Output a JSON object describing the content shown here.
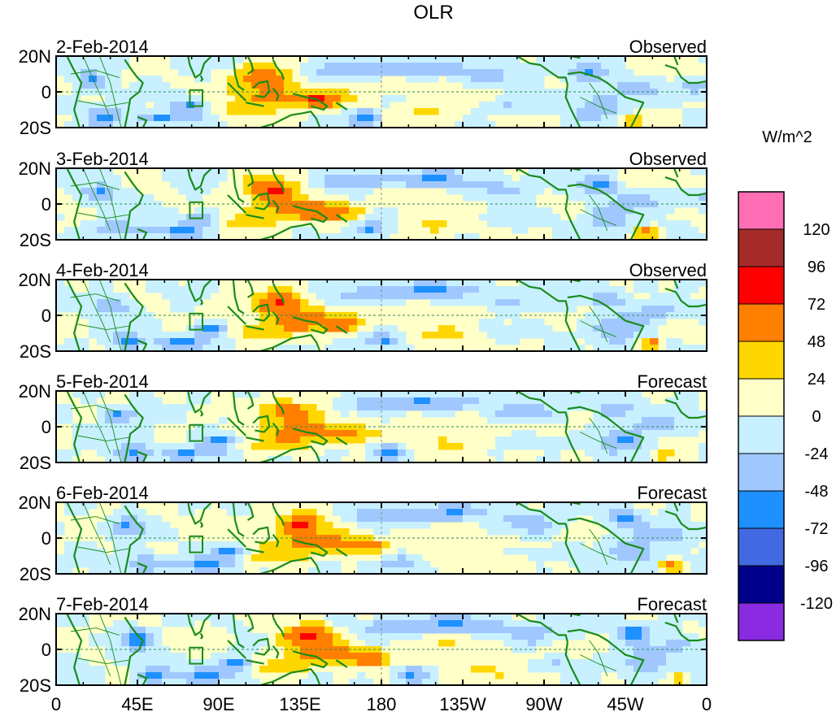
{
  "chart_data": {
    "type": "heatmap",
    "title": "OLR",
    "units_label": "W/m^2",
    "panels": [
      {
        "date": "2-Feb-2014",
        "status": "Observed"
      },
      {
        "date": "3-Feb-2014",
        "status": "Observed"
      },
      {
        "date": "4-Feb-2014",
        "status": "Observed"
      },
      {
        "date": "5-Feb-2014",
        "status": "Forecast"
      },
      {
        "date": "6-Feb-2014",
        "status": "Forecast"
      },
      {
        "date": "7-Feb-2014",
        "status": "Forecast"
      }
    ],
    "longitude_range": [
      0,
      360
    ],
    "latitude_range": [
      -20,
      20
    ],
    "x_ticks": [
      {
        "lon": 0,
        "label": "0"
      },
      {
        "lon": 45,
        "label": "45E"
      },
      {
        "lon": 90,
        "label": "90E"
      },
      {
        "lon": 135,
        "label": "135E"
      },
      {
        "lon": 180,
        "label": "180"
      },
      {
        "lon": 225,
        "label": "135W"
      },
      {
        "lon": 270,
        "label": "90W"
      },
      {
        "lon": 315,
        "label": "45W"
      },
      {
        "lon": 360,
        "label": "0"
      }
    ],
    "y_ticks": [
      {
        "lat": 20,
        "label": "20N"
      },
      {
        "lat": 0,
        "label": "0"
      },
      {
        "lat": -20,
        "label": "20S"
      }
    ],
    "colorbar": {
      "levels": [
        "120",
        "96",
        "72",
        "48",
        "24",
        "0",
        "-24",
        "-48",
        "-72",
        "-96",
        "-120"
      ],
      "colors": [
        "#ff6eb4",
        "#a52a2a",
        "#ff0000",
        "#ff7f00",
        "#ffd700",
        "#ffffc8",
        "#c8f0ff",
        "#a0c8ff",
        "#1e90ff",
        "#4169e1",
        "#00008b",
        "#8a2be2"
      ]
    },
    "colors": {
      "coast": "#1a8c1a",
      "frame": "#000000",
      "zero_line": "#2e8b57",
      "dateline": "#888888"
    }
  }
}
